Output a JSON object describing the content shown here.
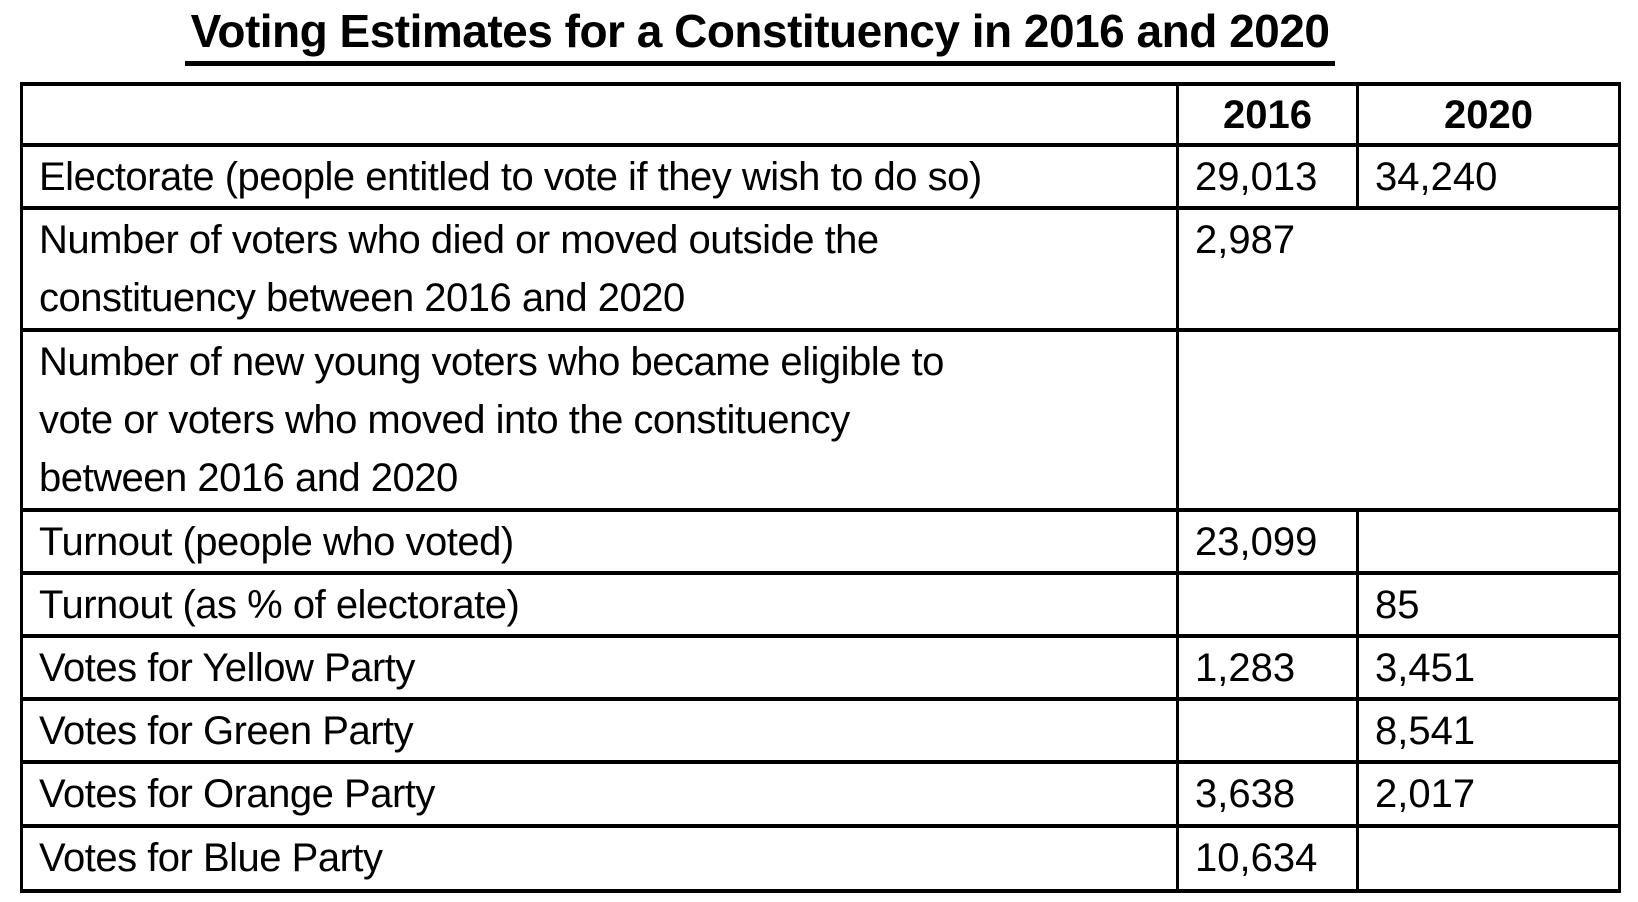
{
  "title": "Voting Estimates for a Constituency in 2016 and 2020",
  "colors": {
    "text": "#000000",
    "background": "#ffffff",
    "border": "#000000"
  },
  "table": {
    "columns": [
      "",
      "2016",
      "2020"
    ],
    "rows": [
      {
        "label": "Electorate (people entitled to vote if they wish to do so)",
        "y2016": "29,013",
        "y2020": "34,240"
      },
      {
        "label": "Number of voters who died or moved outside the\nconstituency between 2016 and 2020",
        "merged_value": "2,987"
      },
      {
        "label": "Number of new young voters who became eligible to\nvote or voters who moved into the constituency\nbetween 2016 and 2020",
        "merged_value": ""
      },
      {
        "label": "Turnout (people who voted)",
        "y2016": "23,099",
        "y2020": ""
      },
      {
        "label": "Turnout (as % of electorate)",
        "y2016": "",
        "y2020": "85"
      },
      {
        "label": "Votes for Yellow Party",
        "y2016": "1,283",
        "y2020": "3,451"
      },
      {
        "label": "Votes for Green Party",
        "y2016": "",
        "y2020": "8,541"
      },
      {
        "label": "Votes for Orange Party",
        "y2016": "3,638",
        "y2020": "2,017"
      },
      {
        "label": "Votes for Blue Party",
        "y2016": "10,634",
        "y2020": ""
      }
    ]
  },
  "chart_data": {
    "type": "table",
    "title": "Voting Estimates for a Constituency in 2016 and 2020",
    "categories": [
      "Electorate (people entitled to vote if they wish to do so)",
      "Number of voters who died or moved outside the constituency between 2016 and 2020",
      "Number of new young voters who became eligible to vote or voters who moved into the constituency between 2016 and 2020",
      "Turnout (people who voted)",
      "Turnout (as % of electorate)",
      "Votes for Yellow Party",
      "Votes for Green Party",
      "Votes for Orange Party",
      "Votes for Blue Party"
    ],
    "series": [
      {
        "name": "2016",
        "values": [
          29013,
          2987,
          null,
          23099,
          null,
          1283,
          null,
          3638,
          10634
        ]
      },
      {
        "name": "2020",
        "values": [
          34240,
          null,
          null,
          null,
          85,
          3451,
          8541,
          2017,
          null
        ]
      }
    ],
    "notes": "Rows 2 and 3 have a single value cell merged across the 2016 and 2020 columns; row 2 merged value is 2,987 and row 3 merged cell is empty."
  }
}
